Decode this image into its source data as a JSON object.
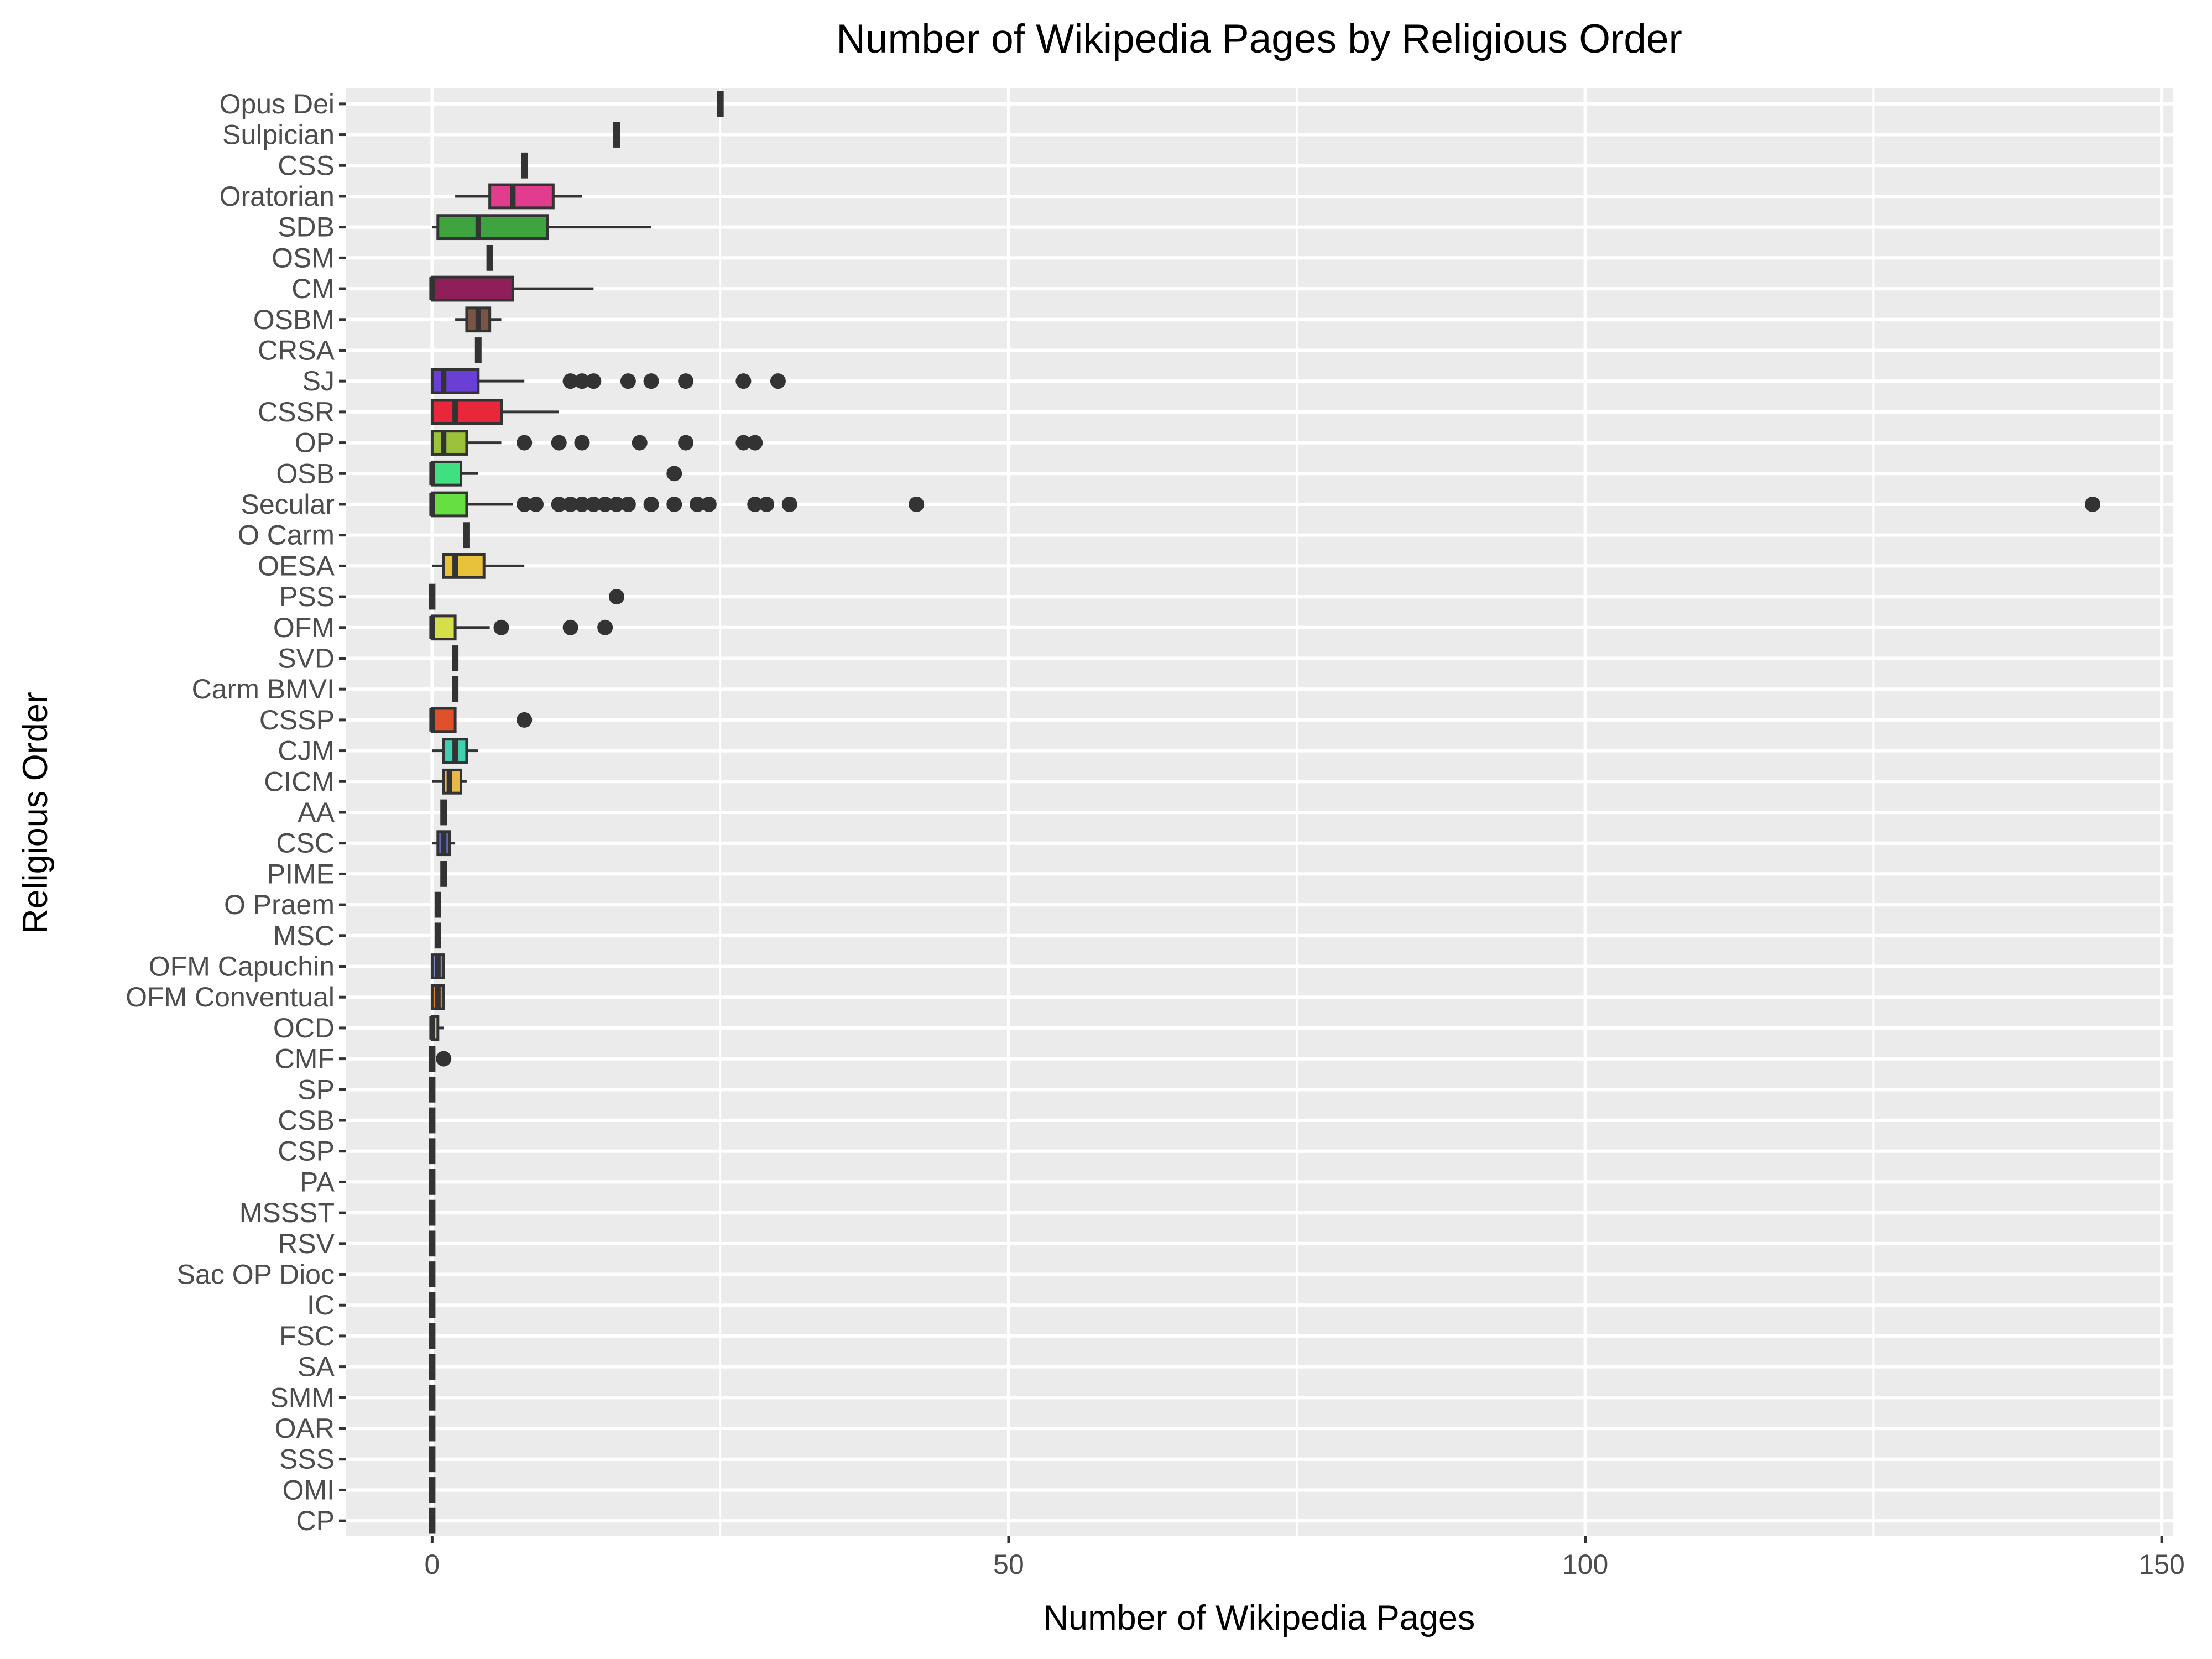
{
  "chart_data": {
    "type": "boxplot",
    "title": "Number of Wikipedia Pages by Religious Order",
    "xlabel": "Number of Wikipedia Pages",
    "ylabel": "Religious Order",
    "xlim": [
      -7.5,
      151
    ],
    "x_ticks": [
      0,
      50,
      100,
      150
    ],
    "grid": true,
    "legend": "none",
    "series": [
      {
        "name": "Opus Dei",
        "color": "#e040fb",
        "min": 25,
        "q1": 25,
        "median": 25,
        "q3": 25,
        "max": 25,
        "outliers": []
      },
      {
        "name": "Sulpician",
        "color": "#ff9800",
        "min": 16,
        "q1": 16,
        "median": 16,
        "q3": 16,
        "max": 16,
        "outliers": []
      },
      {
        "name": "CSS",
        "color": "#00bcd4",
        "min": 8,
        "q1": 8,
        "median": 8,
        "q3": 8,
        "max": 8,
        "outliers": []
      },
      {
        "name": "Oratorian",
        "color": "#e23c8f",
        "min": 2,
        "q1": 5,
        "median": 7,
        "q3": 10.5,
        "max": 13,
        "outliers": []
      },
      {
        "name": "SDB",
        "color": "#3fa33f",
        "min": 0,
        "q1": 0.5,
        "median": 4,
        "q3": 10,
        "max": 19,
        "outliers": []
      },
      {
        "name": "OSM",
        "color": "#8bc34a",
        "min": 5,
        "q1": 5,
        "median": 5,
        "q3": 5,
        "max": 5,
        "outliers": []
      },
      {
        "name": "CM",
        "color": "#8e1f58",
        "min": 0,
        "q1": 0,
        "median": 0,
        "q3": 7,
        "max": 14,
        "outliers": []
      },
      {
        "name": "OSBM",
        "color": "#795548",
        "min": 2,
        "q1": 3,
        "median": 4,
        "q3": 5,
        "max": 6,
        "outliers": []
      },
      {
        "name": "CRSA",
        "color": "#607d8b",
        "min": 4,
        "q1": 4,
        "median": 4,
        "q3": 4,
        "max": 4,
        "outliers": []
      },
      {
        "name": "SJ",
        "color": "#6a3fd6",
        "min": 0,
        "q1": 0,
        "median": 1,
        "q3": 4,
        "max": 8,
        "outliers": [
          12,
          13,
          14,
          17,
          19,
          22,
          27,
          30
        ]
      },
      {
        "name": "CSSR",
        "color": "#e8283a",
        "min": 0,
        "q1": 0,
        "median": 2,
        "q3": 6,
        "max": 11,
        "outliers": []
      },
      {
        "name": "OP",
        "color": "#9cc23c",
        "min": 0,
        "q1": 0,
        "median": 1,
        "q3": 3,
        "max": 6,
        "outliers": [
          8,
          11,
          13,
          18,
          22,
          27,
          28
        ]
      },
      {
        "name": "OSB",
        "color": "#40e080",
        "min": 0,
        "q1": 0,
        "median": 0,
        "q3": 2.5,
        "max": 4,
        "outliers": [
          21
        ]
      },
      {
        "name": "Secular",
        "color": "#66e040",
        "min": 0,
        "q1": 0,
        "median": 0,
        "q3": 3,
        "max": 7,
        "outliers": [
          8,
          9,
          11,
          12,
          13,
          14,
          15,
          16,
          17,
          19,
          21,
          23,
          24,
          28,
          29,
          31,
          42,
          144
        ]
      },
      {
        "name": "O Carm",
        "color": "#3f51b5",
        "min": 3,
        "q1": 3,
        "median": 3,
        "q3": 3,
        "max": 3,
        "outliers": []
      },
      {
        "name": "OESA",
        "color": "#e8c23a",
        "min": 0,
        "q1": 1,
        "median": 2,
        "q3": 4.5,
        "max": 8,
        "outliers": []
      },
      {
        "name": "PSS",
        "color": "#c0c0c0",
        "min": 0,
        "q1": 0,
        "median": 0,
        "q3": 0,
        "max": 0,
        "outliers": [
          16
        ]
      },
      {
        "name": "OFM",
        "color": "#d4e04a",
        "min": 0,
        "q1": 0,
        "median": 0,
        "q3": 2,
        "max": 5,
        "outliers": [
          6,
          12,
          15
        ]
      },
      {
        "name": "SVD",
        "color": "#9e9e9e",
        "min": 2,
        "q1": 2,
        "median": 2,
        "q3": 2,
        "max": 2,
        "outliers": []
      },
      {
        "name": "Carm BMVI",
        "color": "#a1887f",
        "min": 2,
        "q1": 2,
        "median": 2,
        "q3": 2,
        "max": 2,
        "outliers": []
      },
      {
        "name": "CSSP",
        "color": "#e0502a",
        "min": 0,
        "q1": 0,
        "median": 0,
        "q3": 2,
        "max": 2,
        "outliers": [
          8
        ]
      },
      {
        "name": "CJM",
        "color": "#40d0b0",
        "min": 0,
        "q1": 1,
        "median": 2,
        "q3": 3,
        "max": 4,
        "outliers": []
      },
      {
        "name": "CICM",
        "color": "#e8b84a",
        "min": 0,
        "q1": 1,
        "median": 1.5,
        "q3": 2.5,
        "max": 3,
        "outliers": []
      },
      {
        "name": "AA",
        "color": "#b0bec5",
        "min": 1,
        "q1": 1,
        "median": 1,
        "q3": 1,
        "max": 1,
        "outliers": []
      },
      {
        "name": "CSC",
        "color": "#5c6bc0",
        "min": 0,
        "q1": 0.5,
        "median": 1,
        "q3": 1.5,
        "max": 2,
        "outliers": []
      },
      {
        "name": "PIME",
        "color": "#ffb74d",
        "min": 1,
        "q1": 1,
        "median": 1,
        "q3": 1,
        "max": 1,
        "outliers": []
      },
      {
        "name": "O Praem",
        "color": "#4db6ac",
        "min": 0.5,
        "q1": 0.5,
        "median": 0.5,
        "q3": 0.5,
        "max": 0.5,
        "outliers": []
      },
      {
        "name": "MSC",
        "color": "#f06292",
        "min": 0.5,
        "q1": 0.5,
        "median": 0.5,
        "q3": 0.5,
        "max": 0.5,
        "outliers": []
      },
      {
        "name": "OFM Capuchin",
        "color": "#7986cb",
        "min": 0,
        "q1": 0,
        "median": 0.5,
        "q3": 1,
        "max": 1,
        "outliers": []
      },
      {
        "name": "OFM Conventual",
        "color": "#e87a2a",
        "min": 0,
        "q1": 0,
        "median": 0.5,
        "q3": 1,
        "max": 1,
        "outliers": []
      },
      {
        "name": "OCD",
        "color": "#aed581",
        "min": 0,
        "q1": 0,
        "median": 0,
        "q3": 0.5,
        "max": 1,
        "outliers": []
      },
      {
        "name": "CMF",
        "color": "#90a4ae",
        "min": 0,
        "q1": 0,
        "median": 0,
        "q3": 0,
        "max": 0,
        "outliers": [
          1
        ]
      },
      {
        "name": "SP",
        "color": "#bdbdbd",
        "min": 0,
        "q1": 0,
        "median": 0,
        "q3": 0,
        "max": 0,
        "outliers": []
      },
      {
        "name": "CSB",
        "color": "#bdbdbd",
        "min": 0,
        "q1": 0,
        "median": 0,
        "q3": 0,
        "max": 0,
        "outliers": []
      },
      {
        "name": "CSP",
        "color": "#bdbdbd",
        "min": 0,
        "q1": 0,
        "median": 0,
        "q3": 0,
        "max": 0,
        "outliers": []
      },
      {
        "name": "PA",
        "color": "#bdbdbd",
        "min": 0,
        "q1": 0,
        "median": 0,
        "q3": 0,
        "max": 0,
        "outliers": []
      },
      {
        "name": "MSSST",
        "color": "#bdbdbd",
        "min": 0,
        "q1": 0,
        "median": 0,
        "q3": 0,
        "max": 0,
        "outliers": []
      },
      {
        "name": "RSV",
        "color": "#bdbdbd",
        "min": 0,
        "q1": 0,
        "median": 0,
        "q3": 0,
        "max": 0,
        "outliers": []
      },
      {
        "name": "Sac OP Dioc",
        "color": "#bdbdbd",
        "min": 0,
        "q1": 0,
        "median": 0,
        "q3": 0,
        "max": 0,
        "outliers": []
      },
      {
        "name": "IC",
        "color": "#bdbdbd",
        "min": 0,
        "q1": 0,
        "median": 0,
        "q3": 0,
        "max": 0,
        "outliers": []
      },
      {
        "name": "FSC",
        "color": "#bdbdbd",
        "min": 0,
        "q1": 0,
        "median": 0,
        "q3": 0,
        "max": 0,
        "outliers": []
      },
      {
        "name": "SA",
        "color": "#bdbdbd",
        "min": 0,
        "q1": 0,
        "median": 0,
        "q3": 0,
        "max": 0,
        "outliers": []
      },
      {
        "name": "SMM",
        "color": "#bdbdbd",
        "min": 0,
        "q1": 0,
        "median": 0,
        "q3": 0,
        "max": 0,
        "outliers": []
      },
      {
        "name": "OAR",
        "color": "#bdbdbd",
        "min": 0,
        "q1": 0,
        "median": 0,
        "q3": 0,
        "max": 0,
        "outliers": []
      },
      {
        "name": "SSS",
        "color": "#bdbdbd",
        "min": 0,
        "q1": 0,
        "median": 0,
        "q3": 0,
        "max": 0,
        "outliers": []
      },
      {
        "name": "OMI",
        "color": "#bdbdbd",
        "min": 0,
        "q1": 0,
        "median": 0,
        "q3": 0,
        "max": 0,
        "outliers": []
      },
      {
        "name": "CP",
        "color": "#bdbdbd",
        "min": 0,
        "q1": 0,
        "median": 0,
        "q3": 0,
        "max": 0,
        "outliers": []
      }
    ]
  }
}
